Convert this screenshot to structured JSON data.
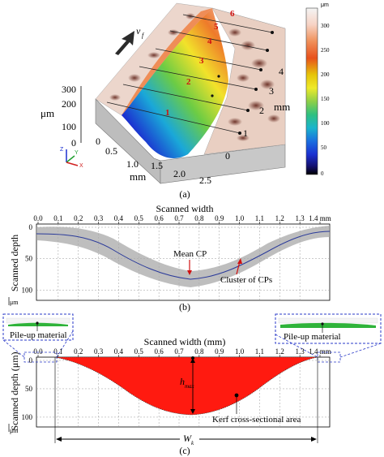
{
  "panel_a": {
    "label": "(a)",
    "velocity_label": "v",
    "velocity_subscript": "f",
    "z_axis_ticks": [
      "300",
      "200",
      "100",
      "0"
    ],
    "z_axis_unit": "μm",
    "x_axis_ticks": [
      "0.5",
      "1.0",
      "1.5",
      "2.0",
      "2.5"
    ],
    "x_axis_origin_tick": "0",
    "x_axis_unit": "mm",
    "y_axis_ticks": [
      "0",
      "1",
      "2",
      "3",
      "4"
    ],
    "y_axis_unit": "mm",
    "profile_numbers": [
      "1",
      "2",
      "3",
      "4",
      "5",
      "6"
    ],
    "triad": {
      "z": "Z",
      "y": "Y",
      "x": "X"
    },
    "colorbar": {
      "unit": "μm",
      "ticks": [
        "300",
        "250",
        "200",
        "150",
        "100",
        "50",
        "0"
      ],
      "colors": [
        "#f4f4f4",
        "#f7d3c4",
        "#f0905a",
        "#e8511c",
        "#e0c400",
        "#f2ec2a",
        "#9bd045",
        "#3fbf6a",
        "#1bb7c8",
        "#1a73e0",
        "#1b2fd0",
        "#14106e",
        "#000000"
      ]
    }
  },
  "panel_b": {
    "label": "(b)",
    "x_title": "Scanned width",
    "x_ticks": [
      "0.0",
      "0.1",
      "0.2",
      "0.3",
      "0.4",
      "0.5",
      "0.6",
      "0.7",
      "0.8",
      "0.9",
      "1.0",
      "1.1",
      "1.2",
      "1.3",
      "1.4 mm"
    ],
    "y_title": "Scanned depth",
    "y_ticks": [
      "0",
      "50",
      "100"
    ],
    "y_unit": "μm",
    "annotation_mean": "Mean CP",
    "annotation_cluster": "Cluster of CPs"
  },
  "panel_c": {
    "label": "(c)",
    "x_title": "Scanned width (mm)",
    "x_ticks": [
      "0.0",
      "0.1",
      "0.2",
      "0.3",
      "0.4",
      "0.5",
      "0.6",
      "0.7",
      "0.8",
      "0.9",
      "1.0",
      "1.1",
      "1.2",
      "1.3",
      "1.4 mm"
    ],
    "y_title": "Scanned depth (μm)",
    "y_ticks": [
      "0",
      "50",
      "100"
    ],
    "y_unit": "μm",
    "hmax_label": "h",
    "hmax_sub": "max",
    "area_label": "Kerf cross-sectional area",
    "wk_label": "W",
    "wk_sub": "k",
    "pileup_left": "Pile-up material",
    "pileup_right": "Pile-up material",
    "fill_color": "#ff1a10"
  }
}
